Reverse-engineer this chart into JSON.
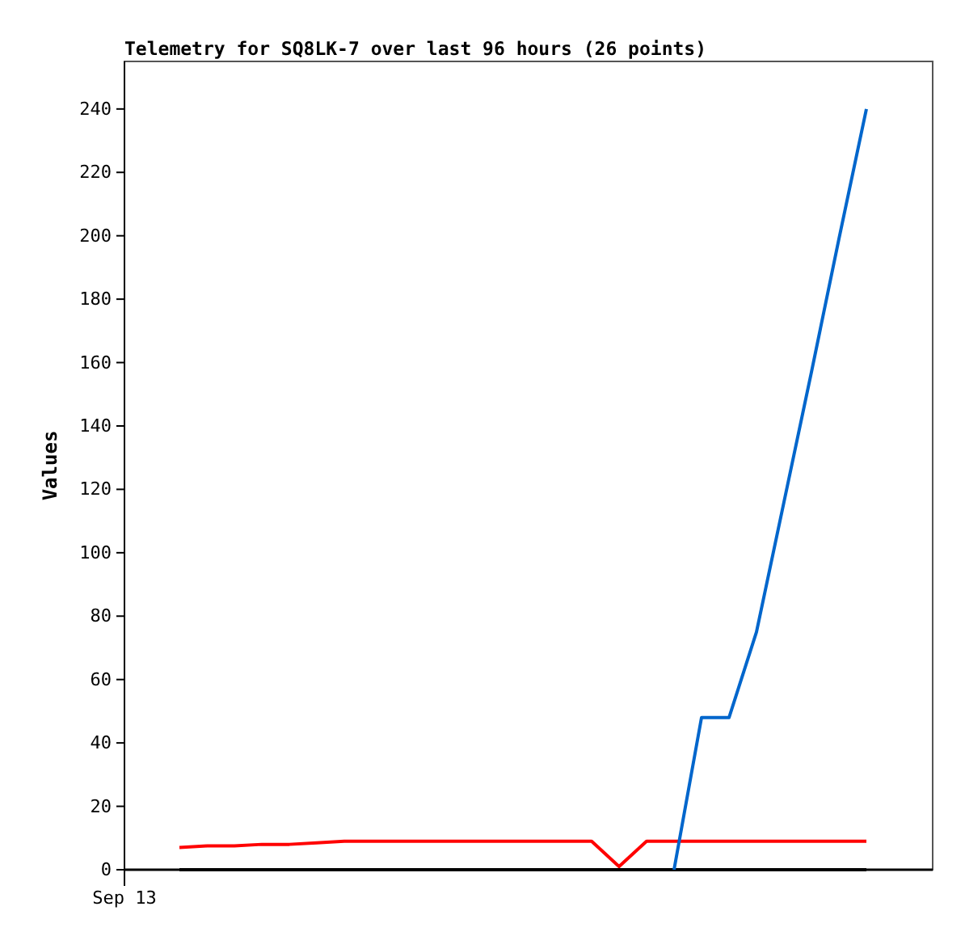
{
  "chart_data": {
    "type": "line",
    "title": "Telemetry for SQ8LK-7 over last 96 hours (26 points)",
    "ylabel": "Values",
    "annotations": [
      "Sep 13"
    ],
    "categories": [
      null,
      null,
      null,
      null,
      null,
      null,
      null,
      null,
      null,
      null,
      null,
      null,
      null,
      null,
      null,
      null,
      null,
      null,
      null,
      null,
      null,
      null,
      null,
      null,
      null,
      null
    ],
    "ylim": [
      0,
      255
    ],
    "yticks": [
      0,
      20,
      40,
      60,
      80,
      100,
      120,
      140,
      160,
      180,
      200,
      220,
      240
    ],
    "marker": "none",
    "line_style": "solid",
    "series": [
      {
        "color": "#000000",
        "values": [
          0,
          0,
          0,
          0,
          0,
          0,
          0,
          0,
          0,
          0,
          0,
          0,
          0,
          0,
          0,
          0,
          0,
          0,
          0,
          0,
          0,
          0,
          0,
          0,
          0,
          0
        ]
      },
      {
        "color": "#ff0000",
        "values": [
          7,
          7.5,
          7.5,
          8,
          8,
          8.5,
          9,
          9,
          9,
          9,
          9,
          9,
          9,
          9,
          9,
          9,
          1,
          9,
          9,
          9,
          9,
          9,
          9,
          9,
          9,
          9
        ]
      },
      {
        "color": "#0066cc",
        "values": [
          null,
          null,
          null,
          null,
          null,
          null,
          null,
          null,
          null,
          null,
          null,
          null,
          null,
          null,
          null,
          null,
          null,
          null,
          0,
          48,
          48,
          75,
          116,
          157,
          199,
          240
        ]
      }
    ]
  }
}
